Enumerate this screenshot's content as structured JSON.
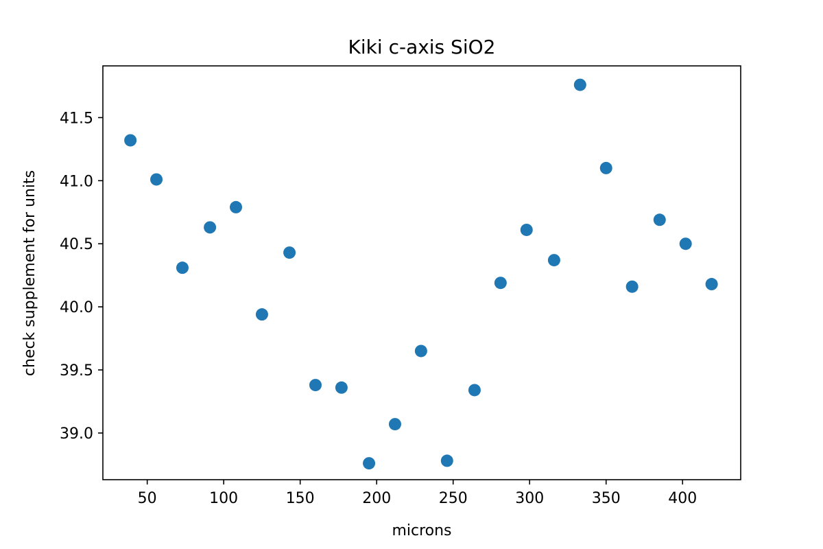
{
  "chart_data": {
    "type": "scatter",
    "title": "Kiki c-axis SiO2",
    "xlabel": "microns",
    "ylabel": "check supplement for units",
    "xlim": [
      21,
      438
    ],
    "ylim": [
      38.63,
      41.91
    ],
    "xticks": [
      50,
      100,
      150,
      200,
      250,
      300,
      350,
      400
    ],
    "xtick_labels": [
      "50",
      "100",
      "150",
      "200",
      "250",
      "300",
      "350",
      "400"
    ],
    "yticks": [
      39.0,
      39.5,
      40.0,
      40.5,
      41.0,
      41.5
    ],
    "ytick_labels": [
      "39.0",
      "39.5",
      "40.0",
      "40.5",
      "41.0",
      "41.5"
    ],
    "grid": false,
    "marker_color": "#1f77b4",
    "series": [
      {
        "name": "SiO2",
        "x": [
          39,
          56,
          73,
          91,
          108,
          125,
          143,
          160,
          177,
          195,
          212,
          229,
          246,
          264,
          281,
          298,
          316,
          333,
          350,
          367,
          385,
          402,
          419
        ],
        "y": [
          41.32,
          41.01,
          40.31,
          40.63,
          40.79,
          39.94,
          40.43,
          39.38,
          39.36,
          38.76,
          39.07,
          39.65,
          38.78,
          39.34,
          40.19,
          40.61,
          40.37,
          41.76,
          41.1,
          40.16,
          40.69,
          40.5,
          40.18
        ]
      }
    ]
  }
}
